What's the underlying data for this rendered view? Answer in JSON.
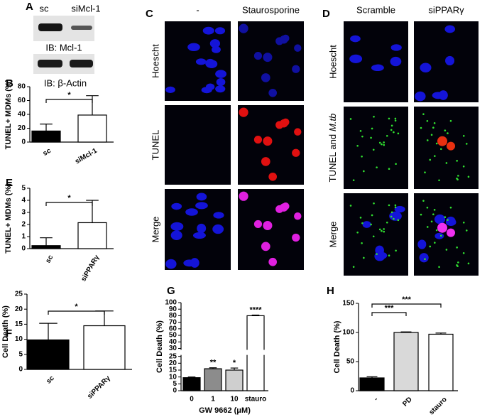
{
  "blot": {
    "panel": "A",
    "lanes": [
      "sc",
      "siMcl-1"
    ],
    "probes": [
      "IB: Mcl-1",
      "IB: β-Actin"
    ]
  },
  "images": [
    {
      "panel": "C",
      "columns": [
        "-",
        "Staurosporine"
      ],
      "rows": [
        "Hoescht",
        "TUNEL",
        "Merge"
      ]
    },
    {
      "panel": "D",
      "columns": [
        "Scramble",
        "siPPARγ"
      ],
      "rows": [
        "Hoescht",
        {
          "text": "TUNEL and",
          "italic": "M.tb"
        },
        "Merge"
      ]
    }
  ],
  "chart_data": [
    {
      "type": "bar",
      "panel": "B",
      "ylabel": "TUNEL+ MDMs (%)",
      "categories": [
        "sc",
        "siMcl-1"
      ],
      "values": [
        16,
        39
      ],
      "errors": [
        10,
        28
      ],
      "colors": [
        "#000000",
        "#ffffff"
      ],
      "ylim": [
        0,
        80
      ],
      "yticks": [
        0,
        20,
        40,
        60,
        80
      ],
      "brackets": [
        {
          "from": 0,
          "to": 1,
          "label": "*"
        }
      ]
    },
    {
      "type": "bar",
      "panel": "E",
      "ylabel": "TUNEL+ MDMs (%)",
      "categories": [
        "sc",
        "siPPARγ"
      ],
      "values": [
        0.25,
        2.15
      ],
      "errors": [
        0.65,
        1.85
      ],
      "colors": [
        "#000000",
        "#ffffff"
      ],
      "ylim": [
        0,
        5
      ],
      "yticks": [
        0,
        1,
        2,
        3,
        4,
        5
      ],
      "brackets": [
        {
          "from": 0,
          "to": 1,
          "label": "*"
        }
      ]
    },
    {
      "type": "bar",
      "panel": "F",
      "ylabel": "Cell Death (%)",
      "categories": [
        "sc",
        "siPPARγ"
      ],
      "values": [
        9.8,
        14.5
      ],
      "errors": [
        5.5,
        4.9
      ],
      "colors": [
        "#000000",
        "#ffffff"
      ],
      "ylim": [
        0,
        25
      ],
      "yticks": [
        0,
        5,
        10,
        15,
        20,
        25
      ],
      "brackets": [
        {
          "from": 0,
          "to": 1,
          "label": "*"
        }
      ]
    },
    {
      "type": "bar",
      "panel": "G",
      "ylabel": "Cell Death (%)",
      "xlabel": "GW 9662 (μM)",
      "categories": [
        "0",
        "1",
        "10",
        "stauro"
      ],
      "values": [
        9.5,
        16,
        15,
        80
      ],
      "errors": [
        0.5,
        0.7,
        1.5,
        1
      ],
      "colors": [
        "#000000",
        "#8c8c8c",
        "#cfcfcf",
        "#ffffff"
      ],
      "ylim": [
        0,
        100
      ],
      "axis_break": [
        25,
        30
      ],
      "yticks": [
        0,
        5,
        10,
        15,
        20,
        25,
        30,
        40,
        50,
        60,
        70,
        80,
        90,
        100
      ],
      "significance": [
        null,
        "**",
        "*",
        "****"
      ]
    },
    {
      "type": "bar",
      "panel": "H",
      "ylabel": "Cell Death (%)",
      "categories": [
        "-",
        "PD",
        "stauro"
      ],
      "values": [
        22,
        100,
        97
      ],
      "errors": [
        2,
        1,
        2
      ],
      "colors": [
        "#000000",
        "#d9d9d9",
        "#ffffff"
      ],
      "ylim": [
        0,
        150
      ],
      "yticks": [
        0,
        50,
        100,
        150
      ],
      "brackets": [
        {
          "from": 0,
          "to": 1,
          "label": "***"
        },
        {
          "from": 0,
          "to": 2,
          "label": "***"
        }
      ]
    }
  ]
}
